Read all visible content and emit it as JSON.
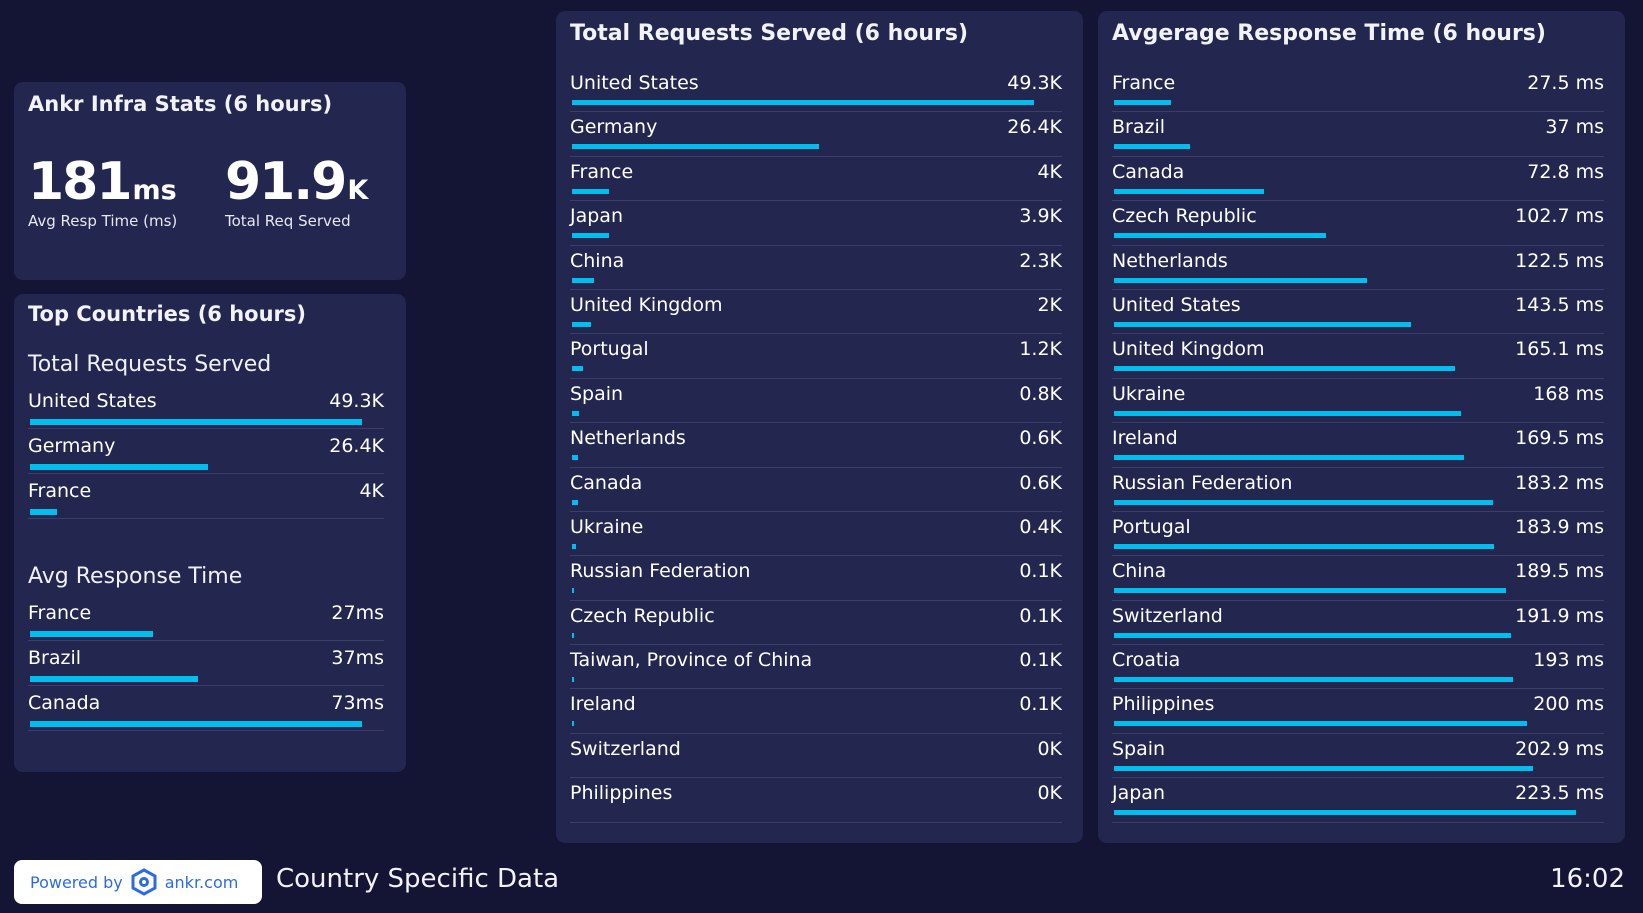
{
  "infra_stats": {
    "title": "Ankr Infra Stats (6 hours)",
    "avg_resp": {
      "value": "181",
      "unit": "ms",
      "label": "Avg Resp Time (ms)"
    },
    "total_req": {
      "value": "91.9",
      "unit": "K",
      "label": "Total Req Served"
    }
  },
  "top_countries": {
    "title": "Top Countries (6 hours)",
    "requests": {
      "heading": "Total Requests Served",
      "rows": [
        {
          "name": "United States",
          "value": "49.3K",
          "amount": 49.3
        },
        {
          "name": "Germany",
          "value": "26.4K",
          "amount": 26.4
        },
        {
          "name": "France",
          "value": "4K",
          "amount": 4
        }
      ]
    },
    "response": {
      "heading": "Avg Response Time",
      "rows": [
        {
          "name": "France",
          "value": "27ms",
          "amount": 27
        },
        {
          "name": "Brazil",
          "value": "37ms",
          "amount": 37
        },
        {
          "name": "Canada",
          "value": "73ms",
          "amount": 73
        }
      ]
    }
  },
  "requests_panel": {
    "title": "Total Requests Served (6 hours)",
    "rows": [
      {
        "name": "United States",
        "value": "49.3K",
        "amount": 49.3
      },
      {
        "name": "Germany",
        "value": "26.4K",
        "amount": 26.4
      },
      {
        "name": "France",
        "value": "4K",
        "amount": 4
      },
      {
        "name": "Japan",
        "value": "3.9K",
        "amount": 3.9
      },
      {
        "name": "China",
        "value": "2.3K",
        "amount": 2.3
      },
      {
        "name": "United Kingdom",
        "value": "2K",
        "amount": 2
      },
      {
        "name": "Portugal",
        "value": "1.2K",
        "amount": 1.2
      },
      {
        "name": "Spain",
        "value": "0.8K",
        "amount": 0.8
      },
      {
        "name": "Netherlands",
        "value": "0.6K",
        "amount": 0.6
      },
      {
        "name": "Canada",
        "value": "0.6K",
        "amount": 0.6
      },
      {
        "name": "Ukraine",
        "value": "0.4K",
        "amount": 0.4
      },
      {
        "name": "Russian Federation",
        "value": "0.1K",
        "amount": 0.1
      },
      {
        "name": "Czech Republic",
        "value": "0.1K",
        "amount": 0.1
      },
      {
        "name": "Taiwan, Province of China",
        "value": "0.1K",
        "amount": 0.1
      },
      {
        "name": "Ireland",
        "value": "0.1K",
        "amount": 0.1
      },
      {
        "name": "Switzerland",
        "value": "0K",
        "amount": 0
      },
      {
        "name": "Philippines",
        "value": "0K",
        "amount": 0
      }
    ]
  },
  "response_panel": {
    "title": "Avgerage Response Time (6 hours)",
    "rows": [
      {
        "name": "France",
        "value": "27.5 ms",
        "amount": 27.5
      },
      {
        "name": "Brazil",
        "value": "37 ms",
        "amount": 37
      },
      {
        "name": "Canada",
        "value": "72.8 ms",
        "amount": 72.8
      },
      {
        "name": "Czech Republic",
        "value": "102.7 ms",
        "amount": 102.7
      },
      {
        "name": "Netherlands",
        "value": "122.5 ms",
        "amount": 122.5
      },
      {
        "name": "United States",
        "value": "143.5 ms",
        "amount": 143.5
      },
      {
        "name": "United Kingdom",
        "value": "165.1 ms",
        "amount": 165.1
      },
      {
        "name": "Ukraine",
        "value": "168 ms",
        "amount": 168
      },
      {
        "name": "Ireland",
        "value": "169.5 ms",
        "amount": 169.5
      },
      {
        "name": "Russian Federation",
        "value": "183.2 ms",
        "amount": 183.2
      },
      {
        "name": "Portugal",
        "value": "183.9 ms",
        "amount": 183.9
      },
      {
        "name": "China",
        "value": "189.5 ms",
        "amount": 189.5
      },
      {
        "name": "Switzerland",
        "value": "191.9 ms",
        "amount": 191.9
      },
      {
        "name": "Croatia",
        "value": "193 ms",
        "amount": 193
      },
      {
        "name": "Philippines",
        "value": "200 ms",
        "amount": 200
      },
      {
        "name": "Spain",
        "value": "202.9 ms",
        "amount": 202.9
      },
      {
        "name": "Japan",
        "value": "223.5 ms",
        "amount": 223.5
      }
    ]
  },
  "footer": {
    "powered_by": "Powered by",
    "brand": "ankr.com",
    "title": "Country Specific Data",
    "time": "16:02"
  },
  "colors": {
    "background": "#141435",
    "card": "#23264f",
    "accent": "#00bfef",
    "badge_text": "#2e6ae6"
  },
  "icons": {
    "brand_logo": "ankr-hexagon-icon"
  }
}
